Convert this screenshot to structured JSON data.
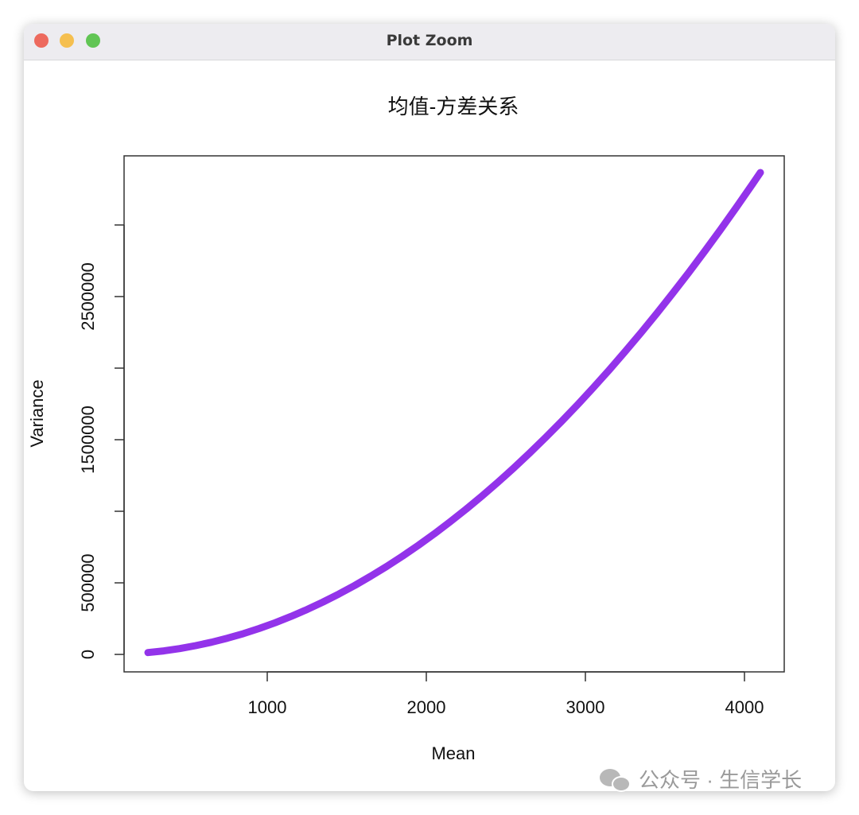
{
  "window": {
    "title": "Plot Zoom"
  },
  "watermark": "公众号 · 生信学长",
  "chart_data": {
    "type": "line",
    "title": "均值-方差关系",
    "x_label": "Mean",
    "y_label": "Variance",
    "x": [
      250,
      350,
      450,
      550,
      650,
      750,
      850,
      950,
      1050,
      1150,
      1250,
      1350,
      1450,
      1550,
      1650,
      1750,
      1850,
      1950,
      2050,
      2150,
      2250,
      2350,
      2450,
      2550,
      2650,
      2750,
      2850,
      2950,
      3050,
      3150,
      3250,
      3350,
      3450,
      3550,
      3650,
      3750,
      3850,
      3950,
      4050,
      4100
    ],
    "values": [
      12750,
      24850,
      40950,
      61050,
      85150,
      113250,
      145350,
      181450,
      221550,
      265650,
      313750,
      365850,
      421950,
      482050,
      546150,
      614250,
      686350,
      762450,
      842550,
      926650,
      1014750,
      1106850,
      1202950,
      1303050,
      1407150,
      1515250,
      1627350,
      1743450,
      1863550,
      1987650,
      2115750,
      2247850,
      2383950,
      2524050,
      2668150,
      2816250,
      2968350,
      3124450,
      3284550,
      3366100
    ],
    "color": "#9333ea",
    "xlim": [
      100,
      4250
    ],
    "ylim": [
      -122000,
      3483000
    ],
    "xticks": [
      1000,
      2000,
      3000,
      4000
    ],
    "yticks": [
      0,
      500000,
      {
        "value": 1000000,
        "label": null
      },
      1500000,
      {
        "value": 2000000,
        "label": null
      },
      2500000,
      {
        "value": 3000000,
        "label": null
      }
    ],
    "grid": false
  }
}
